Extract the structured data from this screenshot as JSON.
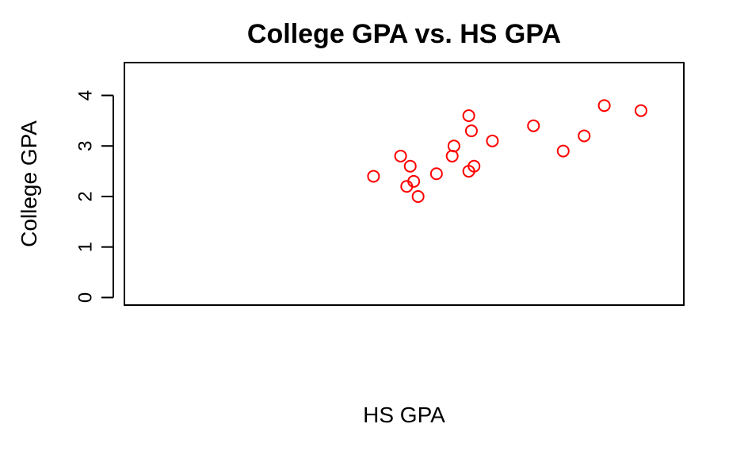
{
  "chart_data": {
    "type": "scatter",
    "title": "College GPA vs. HS GPA",
    "xlabel": "HS GPA",
    "ylabel": "College GPA",
    "x_axis_shown": false,
    "ylim": [
      -0.15,
      4.65
    ],
    "y_ticks": [
      0,
      1,
      2,
      3,
      4
    ],
    "grid": false,
    "legend": "none",
    "marker": "open-circle",
    "point_color": "#ff0000",
    "points": [
      {
        "x": 2.65,
        "y": 2.4
      },
      {
        "x": 2.96,
        "y": 2.8
      },
      {
        "x": 3.03,
        "y": 2.2
      },
      {
        "x": 3.07,
        "y": 2.6
      },
      {
        "x": 3.11,
        "y": 2.3
      },
      {
        "x": 3.16,
        "y": 2.0
      },
      {
        "x": 3.37,
        "y": 2.45
      },
      {
        "x": 3.55,
        "y": 2.8
      },
      {
        "x": 3.57,
        "y": 3.0
      },
      {
        "x": 3.74,
        "y": 2.5
      },
      {
        "x": 3.74,
        "y": 3.6
      },
      {
        "x": 3.77,
        "y": 3.3
      },
      {
        "x": 3.8,
        "y": 2.6
      },
      {
        "x": 4.01,
        "y": 3.1
      },
      {
        "x": 4.48,
        "y": 3.4
      },
      {
        "x": 4.82,
        "y": 2.9
      },
      {
        "x": 5.06,
        "y": 3.2
      },
      {
        "x": 5.29,
        "y": 3.8
      },
      {
        "x": 5.71,
        "y": 3.7
      }
    ],
    "xlim": [
      -0.2,
      6.2
    ]
  }
}
